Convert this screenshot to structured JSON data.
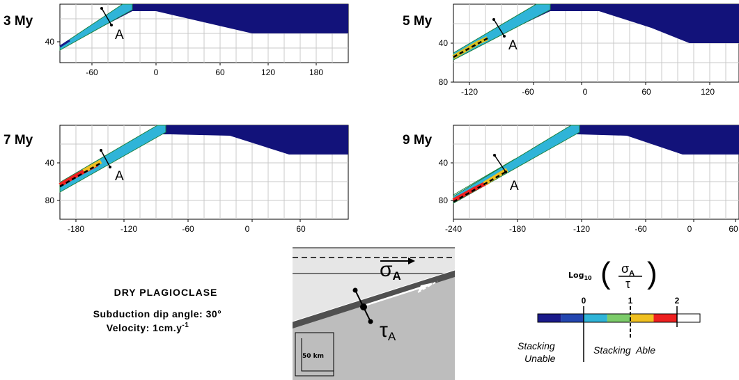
{
  "panels": [
    {
      "id": "p3",
      "title": "3 My",
      "y_ticks": [
        "40"
      ],
      "x_ticks": [
        "-60",
        "0",
        "60",
        "120",
        "180"
      ],
      "marker": "A"
    },
    {
      "id": "p5",
      "title": "5 My",
      "y_ticks": [
        "40",
        "80"
      ],
      "x_ticks": [
        "-120",
        "-60",
        "0",
        "60",
        "120"
      ],
      "marker": "A"
    },
    {
      "id": "p7",
      "title": "7 My",
      "y_ticks": [
        "40",
        "80"
      ],
      "x_ticks": [
        "-180",
        "-120",
        "-60",
        "0",
        "60"
      ],
      "marker": "A"
    },
    {
      "id": "p9",
      "title": "9 My",
      "y_ticks": [
        "40",
        "80"
      ],
      "x_ticks": [
        "-240",
        "-180",
        "-120",
        "-60",
        "0",
        "60"
      ],
      "marker": "A"
    }
  ],
  "caption": {
    "title": "DRY PLAGIOCLASE",
    "dip_angle": "Subduction dip angle: 30°",
    "velocity_prefix": "Velocity: 1cm.y",
    "velocity_exp": "-1"
  },
  "schematic": {
    "sigma": "σ",
    "tau": "τ",
    "subscript": "A",
    "scale": "50 km"
  },
  "legend": {
    "log_label": "Log",
    "log_base": "10",
    "fraction_num": "σ",
    "fraction_num_sub": "A",
    "fraction_den": "τ",
    "ticks": [
      "0",
      "1",
      "2"
    ],
    "unable_1": "Stacking",
    "unable_2": "Unable",
    "able": "Stacking  Able",
    "colors": [
      "#1a1a8a",
      "#2346b0",
      "#2fb4d8",
      "#7ccc6a",
      "#f0c020",
      "#ee2020",
      "#ffffff"
    ]
  }
}
